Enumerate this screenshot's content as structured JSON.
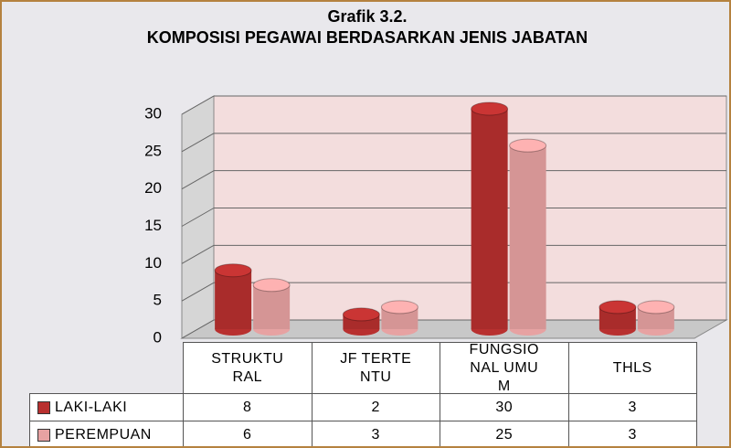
{
  "chart_data": {
    "type": "bar",
    "title": "Grafik 3.2.",
    "subtitle": "KOMPOSISI PEGAWAI  BERDASARKAN  JENIS JABATAN",
    "categories": [
      "STRUKTURAL",
      "JF TERTENTU",
      "FUNGSIONAL UMUM",
      "THLS"
    ],
    "series": [
      {
        "name": "LAKI-LAKI",
        "color": "#b8302f",
        "values": [
          8,
          2,
          30,
          3
        ]
      },
      {
        "name": "PEREMPUAN",
        "color": "#e7a2a2",
        "values": [
          6,
          3,
          25,
          3
        ]
      }
    ],
    "ylim": [
      0,
      30
    ],
    "yticks": [
      0,
      5,
      10,
      15,
      20,
      25,
      30
    ],
    "grid": true
  }
}
